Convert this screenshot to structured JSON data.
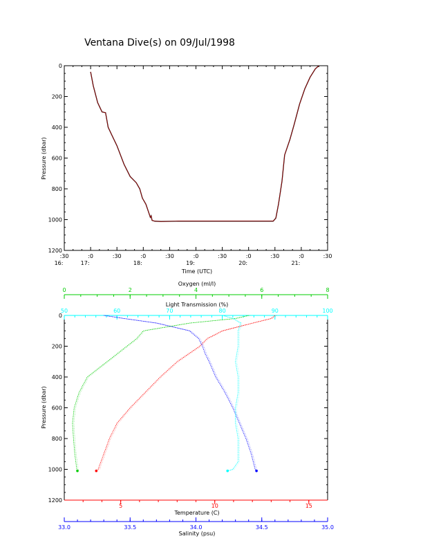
{
  "page_title": "Ventana Dive(s) on 09/Jul/1998",
  "colors": {
    "axis": "#000000",
    "track": "#000000",
    "track_overlay": "#cc0000",
    "temperature": "#ff0000",
    "salinity": "#0000ff",
    "oxygen": "#00cc00",
    "light_transmission": "#00ffff"
  },
  "chart_data": [
    {
      "type": "line",
      "title": "Ventana Dive(s) on 09/Jul/1998",
      "xlabel": "Time (UTC)",
      "ylabel": "Pressure (dbar)",
      "x_tick_labels": [
        {
          "time": "16:30",
          "top": ":30",
          "bottom": "16:"
        },
        {
          "time": "17:00",
          "top": ":0",
          "bottom": "17:"
        },
        {
          "time": "17:30",
          "top": ":30",
          "bottom": ""
        },
        {
          "time": "18:00",
          "top": ":0",
          "bottom": "18:"
        },
        {
          "time": "18:30",
          "top": ":30",
          "bottom": ""
        },
        {
          "time": "19:00",
          "top": ":0",
          "bottom": "19:"
        },
        {
          "time": "19:30",
          "top": ":30",
          "bottom": ""
        },
        {
          "time": "20:00",
          "top": ":0",
          "bottom": "20:"
        },
        {
          "time": "20:30",
          "top": ":30",
          "bottom": ""
        },
        {
          "time": "21:00",
          "top": ":0",
          "bottom": "21:"
        },
        {
          "time": "21:30",
          "top": ":30",
          "bottom": ""
        }
      ],
      "xlim": [
        "16:30",
        "21:30"
      ],
      "ylim": [
        0,
        1200
      ],
      "y_reversed": true,
      "y_ticks": [
        0,
        200,
        400,
        600,
        800,
        1000,
        1200
      ],
      "series": [
        {
          "x": [
            "17:00",
            "17:03",
            "17:08",
            "17:13",
            "17:17",
            "17:20",
            "17:25",
            "17:30",
            "17:38",
            "17:45",
            "17:52",
            "17:56",
            "17:59",
            "18:03",
            "18:06",
            "18:08",
            "18:09",
            "18:10",
            "18:13",
            "18:20",
            "18:40",
            "19:00",
            "19:20",
            "19:40",
            "20:00",
            "20:20",
            "20:28",
            "20:31",
            "20:34",
            "20:38",
            "20:41",
            "20:47",
            "20:52",
            "20:58",
            "21:04",
            "21:10",
            "21:16",
            "21:20"
          ],
          "y": [
            40,
            130,
            240,
            300,
            305,
            400,
            460,
            520,
            640,
            720,
            760,
            800,
            860,
            900,
            950,
            985,
            975,
            1005,
            1010,
            1012,
            1010,
            1010,
            1010,
            1010,
            1010,
            1010,
            1010,
            990,
            900,
            750,
            580,
            480,
            380,
            250,
            150,
            75,
            20,
            0
          ]
        }
      ]
    },
    {
      "type": "scatter",
      "ylabel": "Pressure (dbar)",
      "ylim": [
        0,
        1200
      ],
      "y_reversed": true,
      "y_ticks": [
        0,
        200,
        400,
        600,
        800,
        1000,
        1200
      ],
      "axes": {
        "oxygen": {
          "label": "Oxygen (ml/l)",
          "range": [
            0,
            8
          ],
          "ticks": [
            "0",
            "2",
            "4",
            "6",
            "8"
          ]
        },
        "light_transmission": {
          "label": "Light Transmission (%)",
          "range": [
            50,
            100
          ],
          "ticks": [
            "50",
            "60",
            "70",
            "80",
            "90",
            "100"
          ]
        },
        "temperature": {
          "label": "Temperature (C)",
          "range": [
            2,
            16
          ],
          "ticks": [
            "5",
            "10",
            "15"
          ]
        },
        "salinity": {
          "label": "Salinity (psu)",
          "range": [
            33.0,
            35.0
          ],
          "ticks": [
            "33.0",
            "33.5",
            "34.0",
            "34.5",
            "35.0"
          ]
        }
      },
      "series": [
        {
          "name": "Temperature (C)",
          "axis": "temperature",
          "pressure": [
            0,
            20,
            50,
            100,
            150,
            200,
            250,
            300,
            400,
            500,
            600,
            700,
            800,
            900,
            1000,
            1010
          ],
          "value": [
            13.2,
            13.0,
            12.0,
            10.4,
            9.6,
            9.2,
            8.6,
            8.0,
            7.1,
            6.3,
            5.5,
            4.8,
            4.4,
            4.1,
            3.8,
            3.7
          ]
        },
        {
          "name": "Salinity (psu)",
          "axis": "salinity",
          "pressure": [
            0,
            20,
            50,
            100,
            150,
            200,
            250,
            300,
            400,
            500,
            600,
            700,
            800,
            900,
            1000,
            1010
          ],
          "value": [
            33.3,
            33.45,
            33.7,
            33.95,
            34.02,
            34.05,
            34.07,
            34.1,
            34.15,
            34.22,
            34.28,
            34.33,
            34.38,
            34.42,
            34.45,
            34.46
          ]
        },
        {
          "name": "Oxygen (ml/l)",
          "axis": "oxygen",
          "pressure": [
            0,
            20,
            50,
            100,
            150,
            200,
            300,
            400,
            500,
            600,
            700,
            800,
            900,
            1000,
            1010
          ],
          "value": [
            5.6,
            5.2,
            3.8,
            2.4,
            2.2,
            1.9,
            1.3,
            0.7,
            0.45,
            0.3,
            0.25,
            0.28,
            0.32,
            0.38,
            0.4
          ]
        },
        {
          "name": "Light Transmission (%)",
          "axis": "light_transmission",
          "pressure": [
            0,
            20,
            50,
            100,
            200,
            300,
            400,
            500,
            600,
            700,
            800,
            900,
            950,
            1000,
            1010
          ],
          "value": [
            80,
            82,
            83.5,
            83,
            83,
            82.5,
            83,
            83,
            82.5,
            82.5,
            83,
            83,
            83,
            82,
            81
          ]
        }
      ]
    }
  ]
}
